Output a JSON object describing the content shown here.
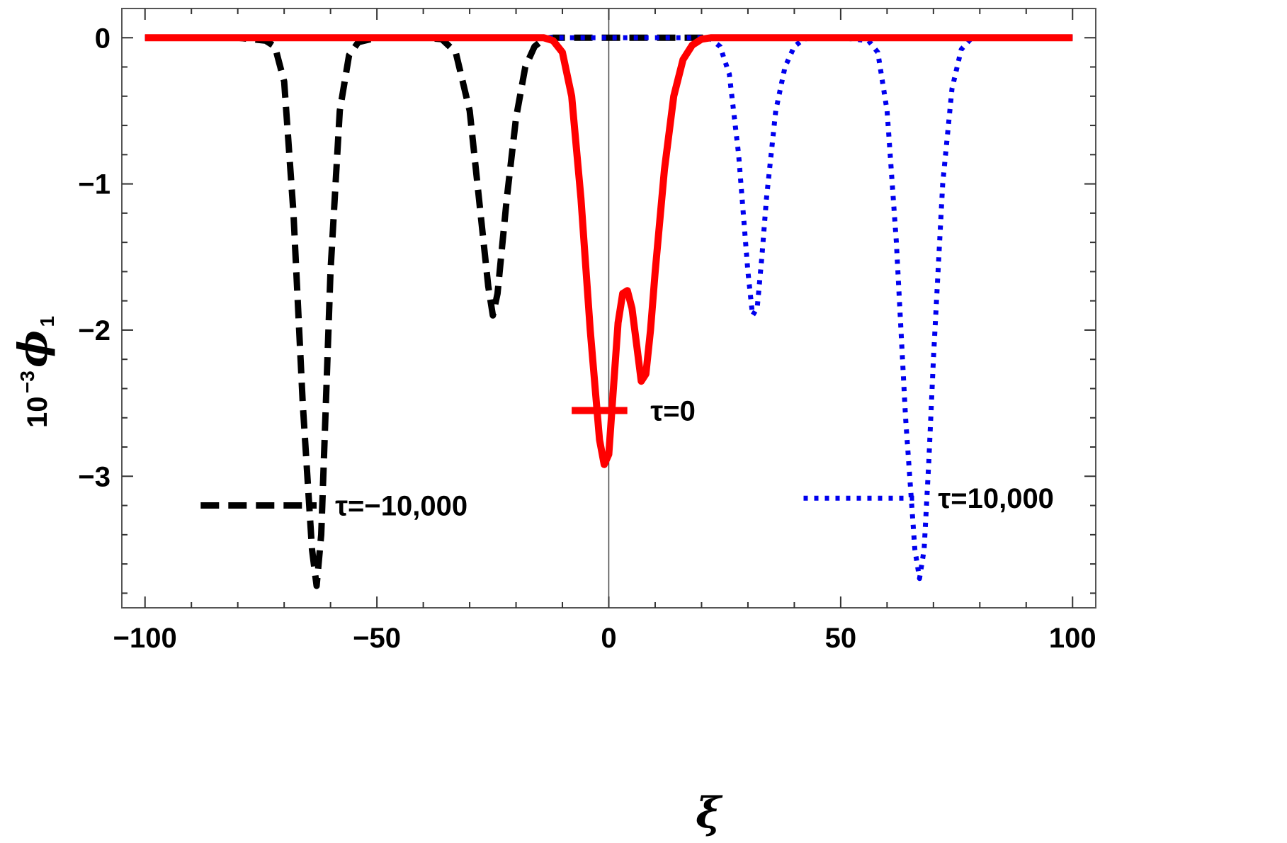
{
  "chart_data": {
    "type": "line",
    "xlabel": "ξ",
    "ylabel_prefix": "10",
    "ylabel_exp": "−3",
    "ylabel_symbol": "ϕ",
    "ylabel_sub": "1",
    "xlim": [
      -105,
      105
    ],
    "ylim": [
      -3.9,
      0.2
    ],
    "xticks": [
      -100,
      -50,
      0,
      50,
      100
    ],
    "xtick_labels": [
      "−100",
      "−50",
      "0",
      "50",
      "100"
    ],
    "yticks": [
      0,
      -1,
      -2,
      -3
    ],
    "ytick_labels": [
      "0",
      "−1",
      "−2",
      "−3"
    ],
    "x_minor_step": 10,
    "y_minor_step": 0.2,
    "grid": false,
    "series": [
      {
        "name": "τ=−10,000",
        "color": "#000000",
        "style": "dashed",
        "x": [
          -100,
          -80,
          -74,
          -72,
          -70,
          -68,
          -66,
          -64,
          -63,
          -62,
          -61,
          -60,
          -58,
          -56,
          -54,
          -50,
          -45,
          -40,
          -36,
          -33,
          -30,
          -28,
          -26,
          -25,
          -24,
          -22,
          -20,
          -18,
          -16,
          -14,
          -12,
          -10,
          0,
          20,
          40,
          60,
          80,
          100
        ],
        "values": [
          0,
          0,
          -0.02,
          -0.06,
          -0.3,
          -1.2,
          -2.5,
          -3.5,
          -3.75,
          -3.4,
          -2.5,
          -1.6,
          -0.5,
          -0.12,
          -0.03,
          0,
          0,
          0,
          -0.01,
          -0.1,
          -0.5,
          -1.1,
          -1.7,
          -1.9,
          -1.75,
          -1.1,
          -0.55,
          -0.2,
          -0.06,
          -0.01,
          0,
          0,
          0,
          0,
          0,
          0,
          0,
          0
        ]
      },
      {
        "name": "τ=0",
        "color": "#ff0000",
        "style": "solid",
        "x": [
          -100,
          -20,
          -14,
          -12,
          -10,
          -8,
          -6,
          -4,
          -2,
          -1,
          0,
          1,
          2,
          3,
          4,
          5,
          6,
          7,
          8,
          9,
          10,
          12,
          14,
          16,
          18,
          20,
          22,
          100
        ],
        "values": [
          0,
          0,
          0,
          -0.02,
          -0.1,
          -0.4,
          -1.1,
          -2.0,
          -2.75,
          -2.92,
          -2.85,
          -2.4,
          -1.95,
          -1.75,
          -1.73,
          -1.85,
          -2.1,
          -2.35,
          -2.3,
          -2.0,
          -1.6,
          -0.9,
          -0.4,
          -0.15,
          -0.05,
          -0.01,
          0,
          0
        ]
      },
      {
        "name": "τ=10,000",
        "color": "#0000ee",
        "style": "dotted",
        "x": [
          -100,
          -10,
          0,
          10,
          20,
          22,
          24,
          26,
          28,
          30,
          31,
          32,
          33,
          34,
          36,
          38,
          40,
          42,
          44,
          50,
          56,
          58,
          60,
          62,
          64,
          66,
          67,
          68,
          69,
          70,
          72,
          74,
          76,
          78,
          80,
          100
        ],
        "values": [
          0,
          0,
          0,
          0,
          0,
          -0.01,
          -0.06,
          -0.25,
          -0.8,
          -1.6,
          -1.9,
          -1.85,
          -1.5,
          -1.1,
          -0.5,
          -0.2,
          -0.06,
          -0.01,
          0,
          0,
          -0.02,
          -0.1,
          -0.5,
          -1.4,
          -2.6,
          -3.5,
          -3.7,
          -3.5,
          -2.9,
          -2.2,
          -1.0,
          -0.35,
          -0.08,
          -0.01,
          0,
          0
        ]
      }
    ],
    "legend": [
      {
        "label": "τ=−10,000",
        "color": "#000000",
        "style": "dashed"
      },
      {
        "label": "τ=0",
        "color": "#ff0000",
        "style": "solid"
      },
      {
        "label": "τ=10,000",
        "color": "#0000ee",
        "style": "dotted"
      }
    ]
  }
}
